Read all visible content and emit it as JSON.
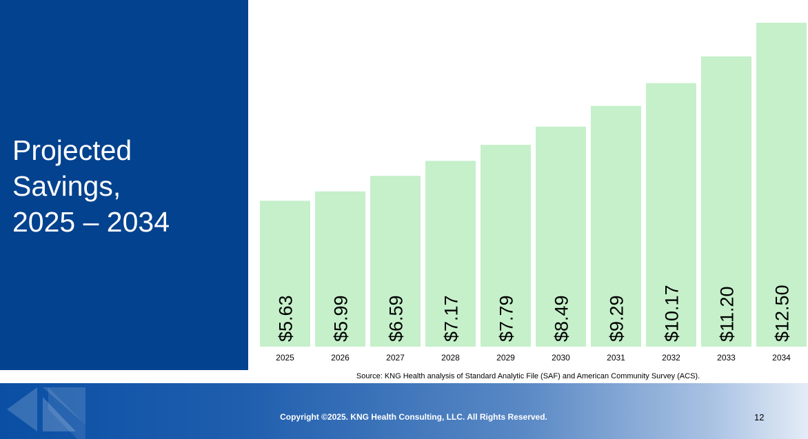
{
  "slide": {
    "title_lines": [
      "Projected",
      "Savings,",
      "2025 – 2034"
    ],
    "source": "Source: KNG Health analysis of Standard Analytic File (SAF) and American Community Survey (ACS).",
    "copyright": "Copyright ©2025. KNG Health Consulting, LLC. All Rights Reserved.",
    "page_number": "12"
  },
  "colors": {
    "side_panel": "#03428e",
    "bar_fill": "#c5f0ca",
    "footer_start": "#0a4fa4",
    "footer_end": "#e4ecf7"
  },
  "icons": [
    "kng-logo-icon"
  ],
  "chart_data": {
    "type": "bar",
    "categories": [
      "2025",
      "2026",
      "2027",
      "2028",
      "2029",
      "2030",
      "2031",
      "2032",
      "2033",
      "2034"
    ],
    "values": [
      5.63,
      5.99,
      6.59,
      7.17,
      7.79,
      8.49,
      9.29,
      10.17,
      11.2,
      12.5
    ],
    "value_labels": [
      "$5.63",
      "$5.99",
      "$6.59",
      "$7.17",
      "$7.79",
      "$8.49",
      "$9.29",
      "$10.17",
      "$11.20",
      "$12.50"
    ],
    "title": "",
    "xlabel": "",
    "ylabel": "",
    "ylim": [
      0,
      12.5
    ],
    "grid": false,
    "legend": "none",
    "data_labels": "inside-base-rotated"
  }
}
